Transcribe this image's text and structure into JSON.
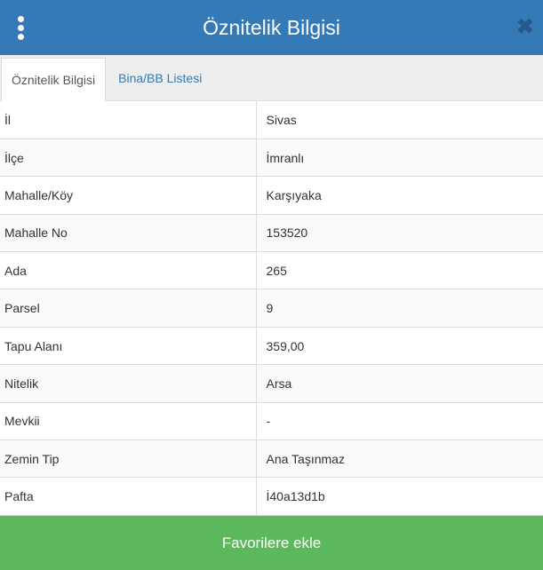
{
  "header": {
    "title": "Öznitelik Bilgisi",
    "menu_icon": "kebab-vertical-icon",
    "close_icon": "close-icon",
    "close_glyph": "✖"
  },
  "tabs": [
    {
      "label": "Öznitelik Bilgisi",
      "active": true
    },
    {
      "label": "Bina/BB Listesi",
      "active": false
    }
  ],
  "rows": [
    {
      "key": "İl",
      "value": "Sivas"
    },
    {
      "key": "İlçe",
      "value": "İmranlı"
    },
    {
      "key": "Mahalle/Köy",
      "value": "Karşıyaka"
    },
    {
      "key": "Mahalle No",
      "value": "153520"
    },
    {
      "key": "Ada",
      "value": "265"
    },
    {
      "key": "Parsel",
      "value": "9"
    },
    {
      "key": "Tapu Alanı",
      "value": "359,00"
    },
    {
      "key": "Nitelik",
      "value": "Arsa"
    },
    {
      "key": "Mevkii",
      "value": "-"
    },
    {
      "key": "Zemin Tip",
      "value": "Ana Taşınmaz"
    },
    {
      "key": "Pafta",
      "value": "İ40a13d1b"
    }
  ],
  "footer": {
    "button_label": "Favorilere ekle"
  },
  "colors": {
    "header": "#337ab7",
    "footer": "#5cb85c",
    "link": "#337ab7"
  }
}
